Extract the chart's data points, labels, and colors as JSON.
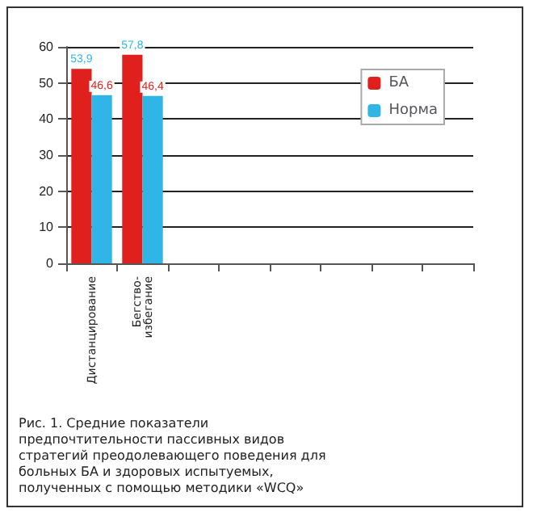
{
  "chart_data": {
    "type": "bar",
    "categories": [
      "Дистанцирование",
      "Бегство-избегание",
      null,
      null,
      null,
      null,
      null,
      null
    ],
    "series": [
      {
        "name": "БА",
        "color": "#e0201c",
        "values": [
          53.9,
          57.8,
          null,
          null,
          null,
          null,
          null,
          null
        ],
        "value_labels": [
          "53,9",
          "57,8",
          null,
          null,
          null,
          null,
          null,
          null
        ]
      },
      {
        "name": "Норма",
        "color": "#2fb6e6",
        "values": [
          46.6,
          46.4,
          null,
          null,
          null,
          null,
          null,
          null
        ],
        "value_labels": [
          "46,6",
          "46,4",
          null,
          null,
          null,
          null,
          null,
          null
        ]
      }
    ],
    "ylim": [
      0,
      60
    ],
    "yticks": [
      0,
      10,
      20,
      30,
      40,
      50,
      60
    ],
    "grid": "y",
    "legend": "top right",
    "annotations": [
      "Рис. 1. Средние показатели предпочтительности пассивных видов стратегий преодолевающего поведения для больных БА и здоровых испытуемых, полученных с помощью методики «WCQ»"
    ]
  }
}
